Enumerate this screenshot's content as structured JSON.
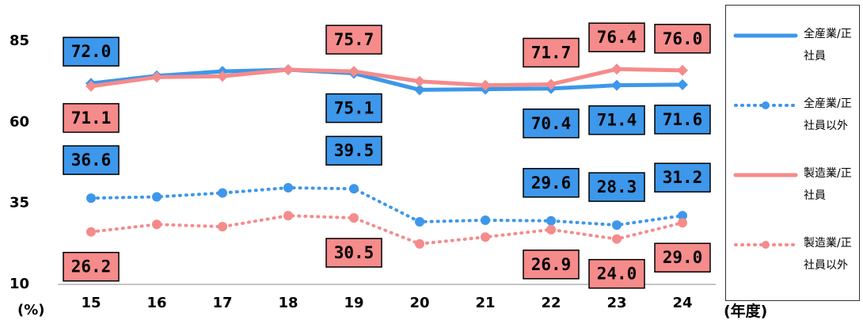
{
  "chart_data": {
    "type": "line",
    "y_label": "(%)",
    "x_label": "(年度)",
    "categories": [
      "15",
      "16",
      "17",
      "18",
      "19",
      "20",
      "21",
      "22",
      "23",
      "24"
    ],
    "ylim": [
      10,
      85
    ],
    "yticks": [
      10,
      35,
      60,
      85
    ],
    "series": [
      {
        "name": "全産業/正社員",
        "color": "#3d97ea",
        "dash": false,
        "values": [
          72.0,
          74.3,
          75.7,
          76.2,
          75.1,
          70.0,
          70.2,
          70.4,
          71.4,
          71.6
        ],
        "value_labels": [
          "72.0",
          null,
          null,
          null,
          "75.1",
          null,
          null,
          "70.4",
          "71.4",
          "71.6"
        ]
      },
      {
        "name": "全産業/正社員以外",
        "color": "#3d97ea",
        "dash": true,
        "values": [
          36.6,
          37.0,
          38.2,
          39.8,
          39.5,
          29.3,
          29.8,
          29.6,
          28.3,
          31.2
        ],
        "value_labels": [
          "36.6",
          null,
          null,
          null,
          "39.5",
          null,
          null,
          "29.6",
          "28.3",
          "31.2"
        ]
      },
      {
        "name": "製造業/正社員",
        "color": "#f58b8b",
        "dash": false,
        "values": [
          71.1,
          73.9,
          74.2,
          76.2,
          75.7,
          72.6,
          71.4,
          71.7,
          76.4,
          76.0
        ],
        "value_labels": [
          "71.1",
          null,
          null,
          null,
          "75.7",
          null,
          null,
          "71.7",
          "76.4",
          "76.0"
        ]
      },
      {
        "name": "製造業/正社員以外",
        "color": "#f58b8b",
        "dash": true,
        "values": [
          26.2,
          28.5,
          27.8,
          31.2,
          30.5,
          22.5,
          24.6,
          26.9,
          24.0,
          29.0
        ],
        "value_labels": [
          "26.2",
          null,
          null,
          null,
          "30.5",
          null,
          null,
          "26.9",
          "24.0",
          "29.0"
        ]
      }
    ]
  }
}
